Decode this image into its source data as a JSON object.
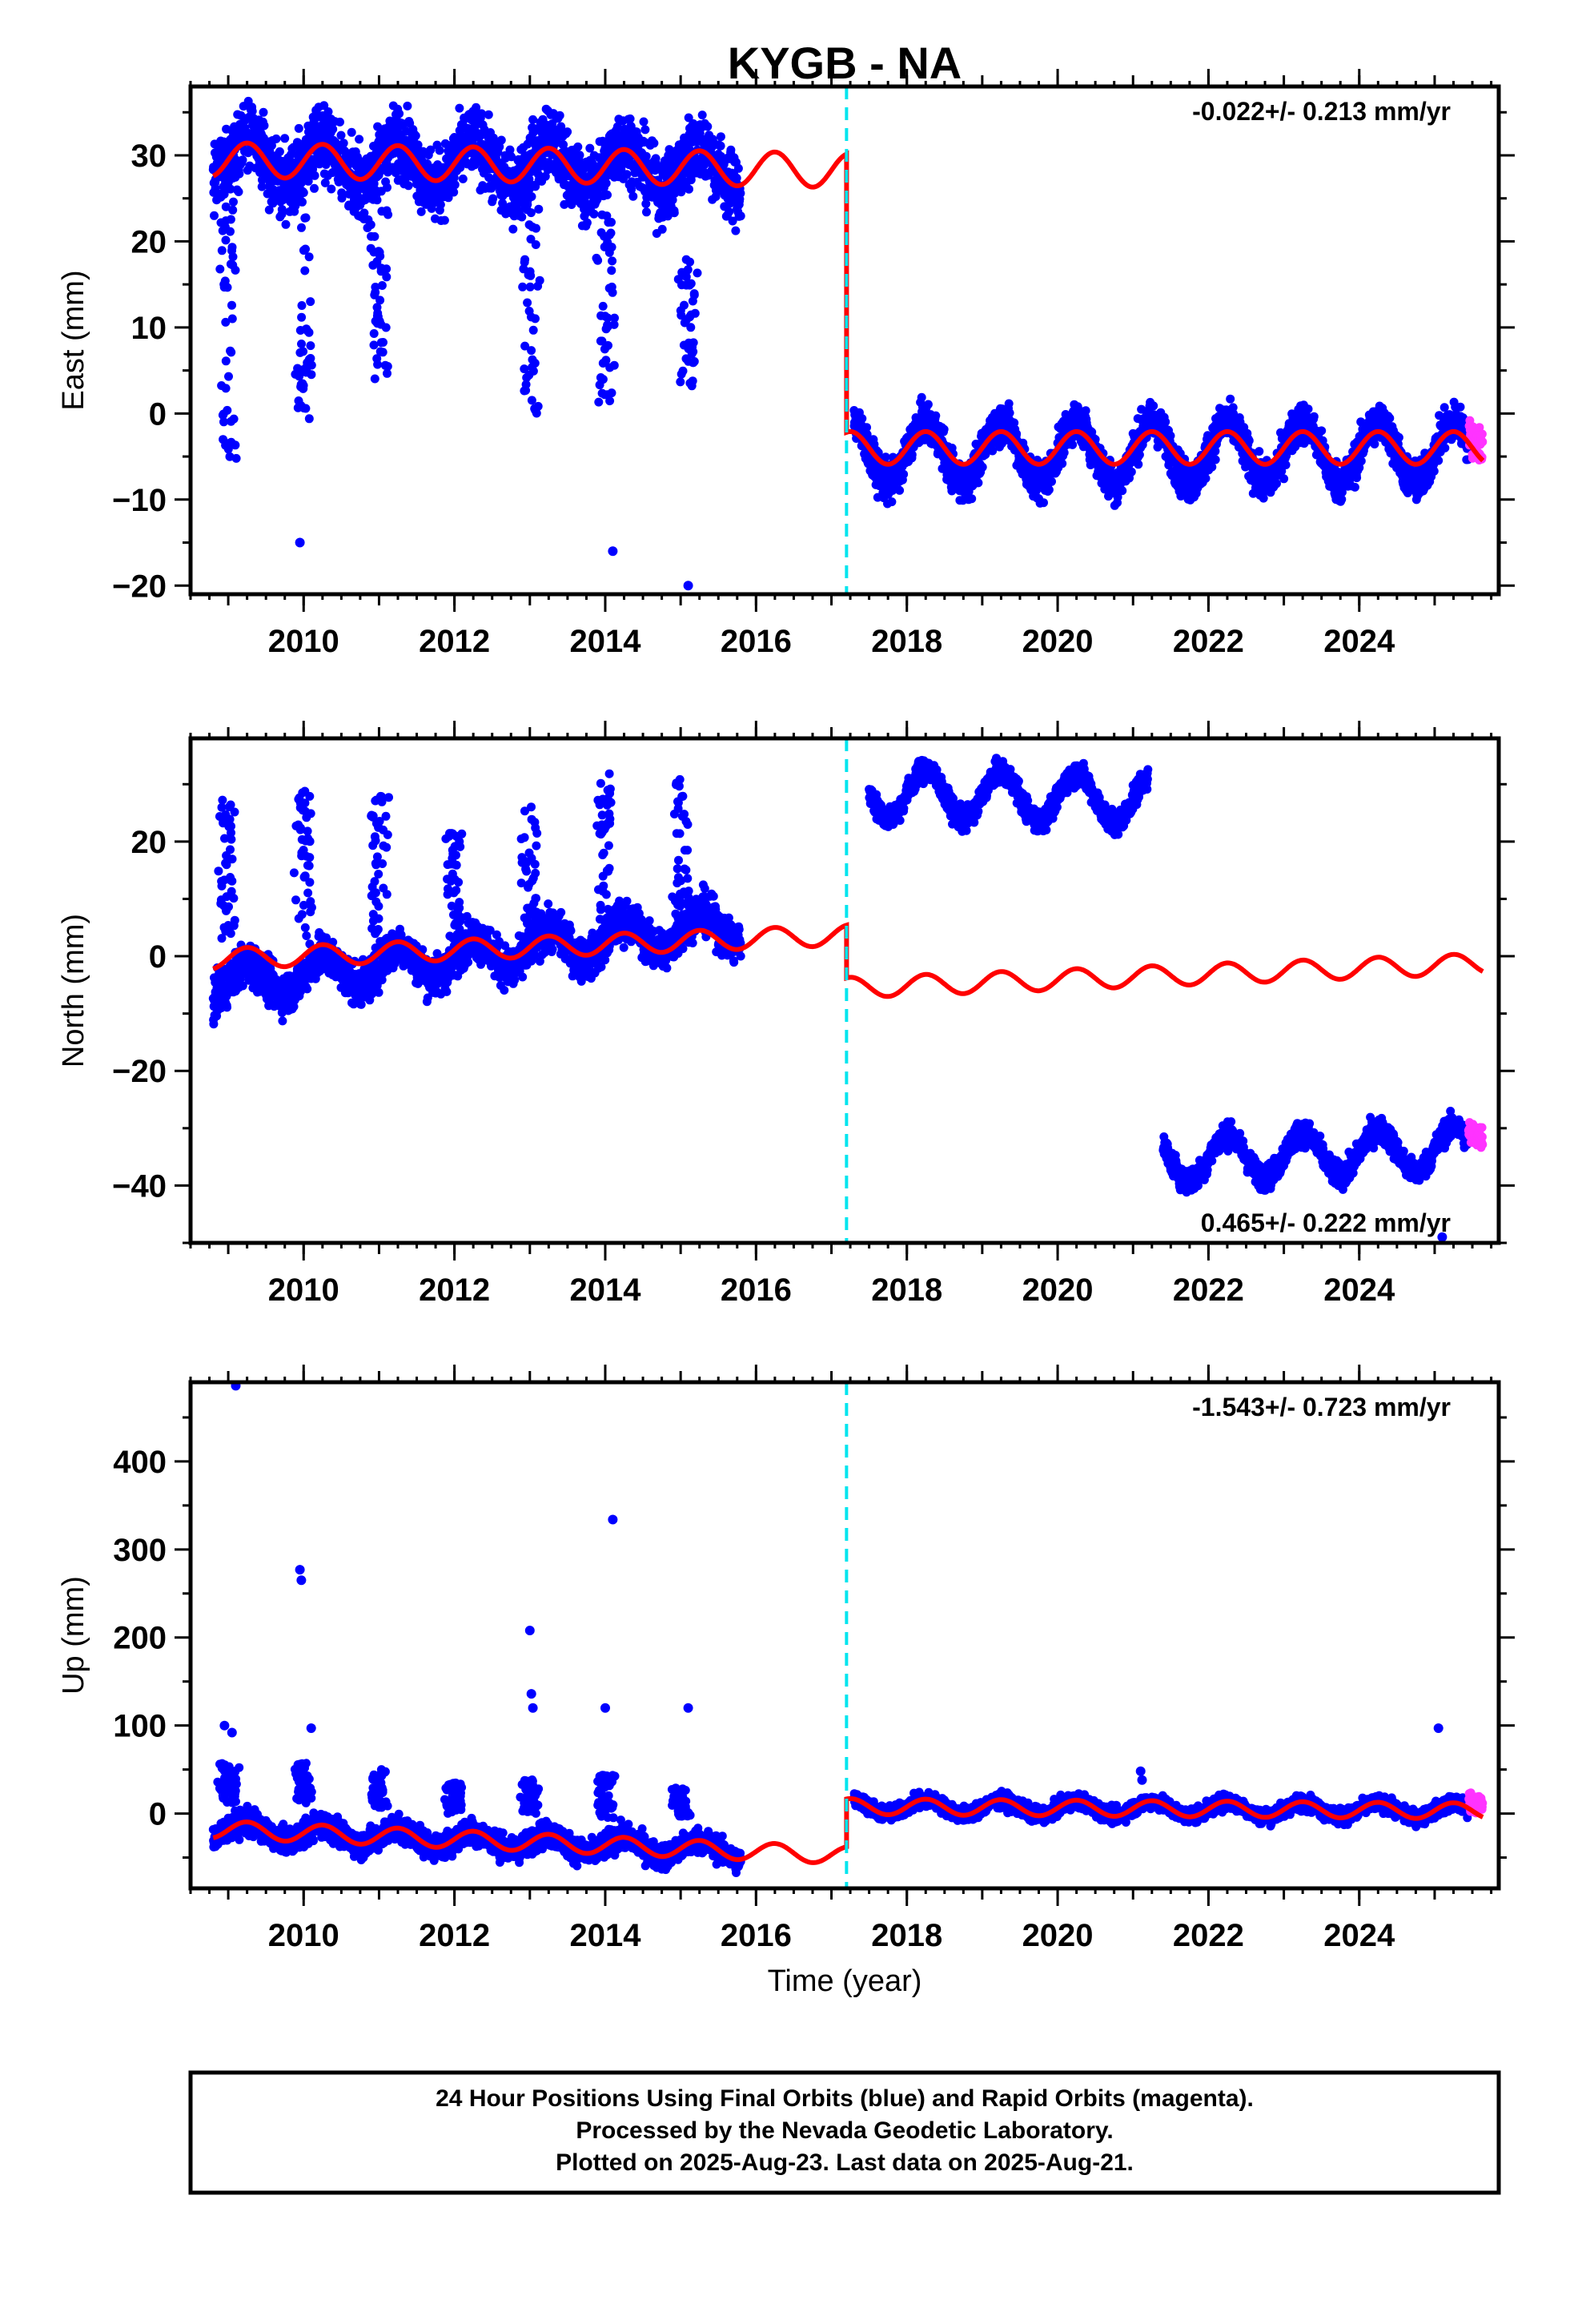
{
  "title": "KYGB - NA",
  "xlabel": "Time (year)",
  "colors": {
    "final_orbits": "#0000ff",
    "rapid_orbits": "#ff33ff",
    "model": "#ff0000",
    "offset_line": "#00e5ee"
  },
  "chart_data": [
    {
      "type": "scatter",
      "ylabel": "East (mm)",
      "rate": "-0.022+/- 0.213 mm/yr",
      "rate_position": "top-right",
      "xlim": [
        2008.5,
        2025.85
      ],
      "ylim": [
        -21,
        38
      ],
      "xticks": [
        2010,
        2012,
        2014,
        2016,
        2018,
        2020,
        2022,
        2024
      ],
      "yticks": [
        -20,
        -10,
        0,
        10,
        20,
        30
      ],
      "offset_year": 2017.2,
      "segments": [
        {
          "start": 2008.8,
          "end": 2015.8,
          "level": 29.5,
          "trend": -0.15,
          "amp": 2.6,
          "noise": 2.8,
          "rapid": false
        },
        {
          "start": 2017.3,
          "end": 2025.45,
          "level": -4.5,
          "trend": 0.0,
          "amp": 3.5,
          "noise": 1.6,
          "rapid": false
        },
        {
          "start": 2025.45,
          "end": 2025.64,
          "level": -3.0,
          "trend": 0.0,
          "amp": 1.0,
          "noise": 1.5,
          "rapid": true
        }
      ],
      "excursions": [
        {
          "year": 2009.0,
          "min": -6,
          "max": 28
        },
        {
          "year": 2010.0,
          "min": -1,
          "max": 27
        },
        {
          "year": 2011.0,
          "min": 4,
          "max": 25
        },
        {
          "year": 2013.0,
          "min": -1,
          "max": 25
        },
        {
          "year": 2014.0,
          "min": 1,
          "max": 24
        },
        {
          "year": 2015.1,
          "min": 3,
          "max": 18
        }
      ],
      "outliers": [
        [
          2009.95,
          -15
        ],
        [
          2014.1,
          -16
        ],
        [
          2015.1,
          -20
        ]
      ],
      "model": [
        {
          "start": 2008.8,
          "end": 2017.2,
          "level": 29.5,
          "trend": -0.15,
          "amp": 2.0
        },
        {
          "start": 2017.2,
          "end": 2025.64,
          "level": -4.0,
          "trend": 0.0,
          "amp": 1.9
        }
      ]
    },
    {
      "type": "scatter",
      "ylabel": "North (mm)",
      "rate": "0.465+/- 0.222 mm/yr",
      "rate_position": "bottom-right",
      "xlim": [
        2008.5,
        2025.85
      ],
      "ylim": [
        -50,
        38
      ],
      "xticks": [
        2010,
        2012,
        2014,
        2016,
        2018,
        2020,
        2022,
        2024
      ],
      "yticks": [
        -40,
        -20,
        0,
        20
      ],
      "offset_year": 2017.2,
      "segments": [
        {
          "start": 2008.8,
          "end": 2015.8,
          "level": -5.0,
          "trend": 1.5,
          "amp": 3.0,
          "noise": 2.5,
          "rapid": false
        },
        {
          "start": 2017.5,
          "end": 2021.2,
          "level": 28.5,
          "trend": -0.3,
          "amp": 4.2,
          "noise": 1.4,
          "rapid": false
        },
        {
          "start": 2021.4,
          "end": 2025.45,
          "level": -35.5,
          "trend": 0.5,
          "amp": 3.8,
          "noise": 1.5,
          "rapid": false
        },
        {
          "start": 2025.45,
          "end": 2025.64,
          "level": -31.0,
          "trend": 0.0,
          "amp": 1.0,
          "noise": 1.5,
          "rapid": true
        }
      ],
      "excursions": [
        {
          "year": 2009.0,
          "min": 3,
          "max": 29
        },
        {
          "year": 2010.0,
          "min": 2,
          "max": 29
        },
        {
          "year": 2011.0,
          "min": 3,
          "max": 29
        },
        {
          "year": 2012.0,
          "min": 2,
          "max": 22
        },
        {
          "year": 2013.0,
          "min": 3,
          "max": 27
        },
        {
          "year": 2014.0,
          "min": 4,
          "max": 32
        },
        {
          "year": 2015.0,
          "min": 5,
          "max": 32
        }
      ],
      "outliers": [
        [
          2025.1,
          -49
        ]
      ],
      "model": [
        {
          "start": 2008.8,
          "end": 2017.2,
          "level": -0.5,
          "trend": 0.5,
          "amp": 1.8
        },
        {
          "start": 2017.2,
          "end": 2025.64,
          "level": -5.5,
          "trend": 0.5,
          "amp": 1.8
        }
      ]
    },
    {
      "type": "scatter",
      "ylabel": "Up (mm)",
      "rate": "-1.543+/- 0.723 mm/yr",
      "rate_position": "top-right",
      "xlim": [
        2008.5,
        2025.85
      ],
      "ylim": [
        -85,
        490
      ],
      "xticks": [
        2010,
        2012,
        2014,
        2016,
        2018,
        2020,
        2022,
        2024
      ],
      "yticks": [
        0,
        100,
        200,
        300,
        400
      ],
      "offset_year": 2017.2,
      "segments": [
        {
          "start": 2008.8,
          "end": 2015.8,
          "level": -18,
          "trend": -3.5,
          "amp": 10,
          "noise": 10,
          "rapid": false
        },
        {
          "start": 2017.3,
          "end": 2025.45,
          "level": 8,
          "trend": -0.6,
          "amp": 8,
          "noise": 6,
          "rapid": false
        },
        {
          "start": 2025.45,
          "end": 2025.64,
          "level": 12,
          "trend": 0.0,
          "amp": 3,
          "noise": 8,
          "rapid": true
        }
      ],
      "excursions": [
        {
          "year": 2009.0,
          "min": 10,
          "max": 60
        },
        {
          "year": 2010.0,
          "min": 10,
          "max": 58
        },
        {
          "year": 2011.0,
          "min": 5,
          "max": 55
        },
        {
          "year": 2012.0,
          "min": 0,
          "max": 35
        },
        {
          "year": 2013.0,
          "min": 0,
          "max": 40
        },
        {
          "year": 2014.0,
          "min": -5,
          "max": 45
        },
        {
          "year": 2015.0,
          "min": -5,
          "max": 30
        }
      ],
      "outliers": [
        [
          2008.95,
          100
        ],
        [
          2009.05,
          92
        ],
        [
          2009.1,
          486
        ],
        [
          2009.95,
          277
        ],
        [
          2009.97,
          265
        ],
        [
          2010.1,
          97
        ],
        [
          2013.0,
          208
        ],
        [
          2013.02,
          136
        ],
        [
          2013.04,
          120
        ],
        [
          2014.0,
          120
        ],
        [
          2014.1,
          334
        ],
        [
          2015.1,
          120
        ],
        [
          2021.1,
          48
        ],
        [
          2021.12,
          38
        ],
        [
          2025.05,
          97
        ]
      ],
      "model": [
        {
          "start": 2008.8,
          "end": 2017.2,
          "level": -18,
          "trend": -3.5,
          "amp": 10
        },
        {
          "start": 2017.2,
          "end": 2025.64,
          "level": 8,
          "trend": -0.6,
          "amp": 9
        }
      ]
    }
  ],
  "caption": [
    "24 Hour Positions Using Final Orbits (blue) and Rapid Orbits (magenta).",
    "Processed by the Nevada Geodetic Laboratory.",
    "Plotted on 2025-Aug-23. Last data on 2025-Aug-21."
  ]
}
